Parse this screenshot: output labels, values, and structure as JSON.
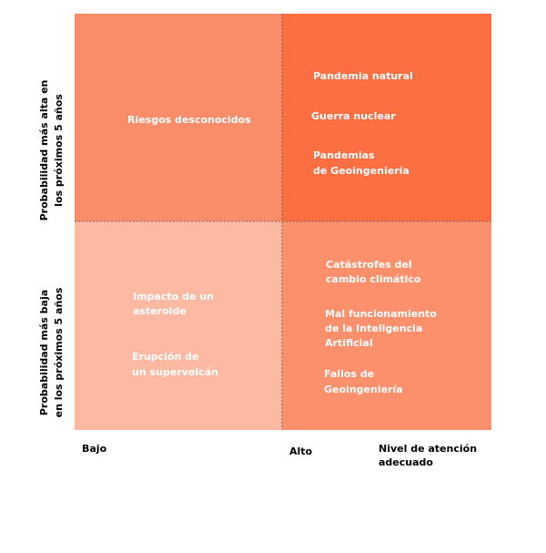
{
  "y_axis": {
    "high": [
      "Probabilidad más alta en",
      "los próximos 5 años"
    ],
    "low": [
      "Probabilidad más baja",
      "en los próximos 5 años"
    ]
  },
  "x_axis": {
    "low": "Bajo",
    "high": "Alto",
    "title": [
      "Nivel de atención",
      "adecuado"
    ]
  },
  "quadrants": [
    {
      "items": [
        [
          "Riesgos desconocidos"
        ]
      ]
    },
    {
      "items": [
        [
          "Pandemia natural"
        ],
        [
          "Guerra nuclear"
        ],
        [
          "Pandemias",
          "de Geoingeniería"
        ]
      ]
    },
    {
      "items": [
        [
          "Impacto de  un",
          "asteroide"
        ],
        [
          "Erupción de",
          "un supervolcán"
        ]
      ]
    },
    {
      "items": [
        [
          "Catástrofes del",
          "cambio climático"
        ],
        [
          "Mal funcionamiento",
          "de la Inteligencia",
          "Artificial"
        ],
        [
          "Fallos de",
          "Geoingeniería"
        ]
      ]
    }
  ]
}
